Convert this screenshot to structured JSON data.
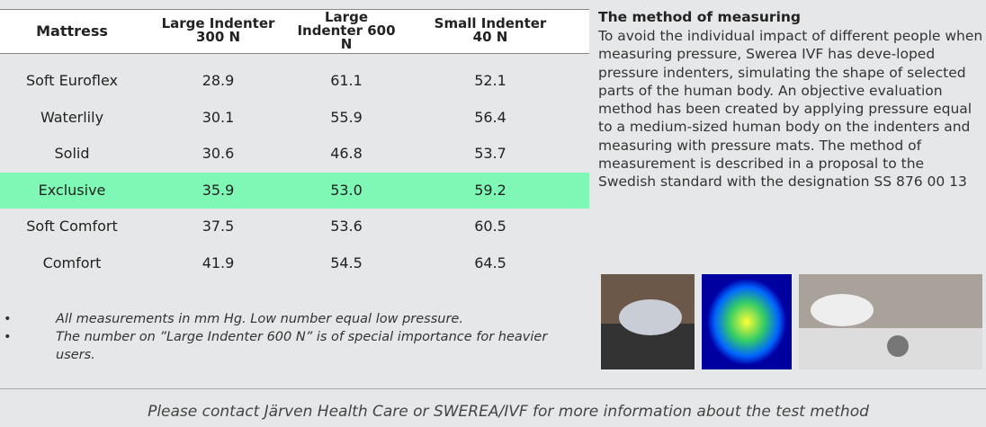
{
  "table": {
    "header": [
      "Mattress",
      "Large Indenter 300 N",
      "Large Indenter 600 N",
      "Small Indenter 40 N"
    ],
    "rows": [
      [
        "Soft Euroflex",
        "28.9",
        "61.1",
        "52.1"
      ],
      [
        "Waterlily",
        "30.1",
        "55.9",
        "56.4"
      ],
      [
        "Solid",
        "30.6",
        "46.8",
        "53.7"
      ],
      [
        "Exclusive",
        "35.9",
        "53.0",
        "59.2"
      ],
      [
        "Soft Comfort",
        "37.5",
        "53.6",
        "60.5"
      ],
      [
        "Comfort",
        "41.9",
        "54.5",
        "64.5"
      ]
    ]
  },
  "notes": [
    "All measurements in mm Hg. Low number equal low pressure.",
    "The number on ”Large Indenter 600 N” is of special importance for heavier users."
  ],
  "method": {
    "title": "The method of measuring",
    "text": "To avoid the individual impact of different people when measuring pressure, Swerea IVF has deve-loped pressure indenters, simulating the shape of selected parts of the human body. An objective evaluation method has been created by applying pressure equal to a medium-sized human body on the indenters and measuring with pressure mats. The method of measurement is described in a proposal to the Swedish standard with the designation SS 876 00 13"
  },
  "footer": "Please contact Järven Health Care or SWEREA/IVF for more information about the test method"
}
